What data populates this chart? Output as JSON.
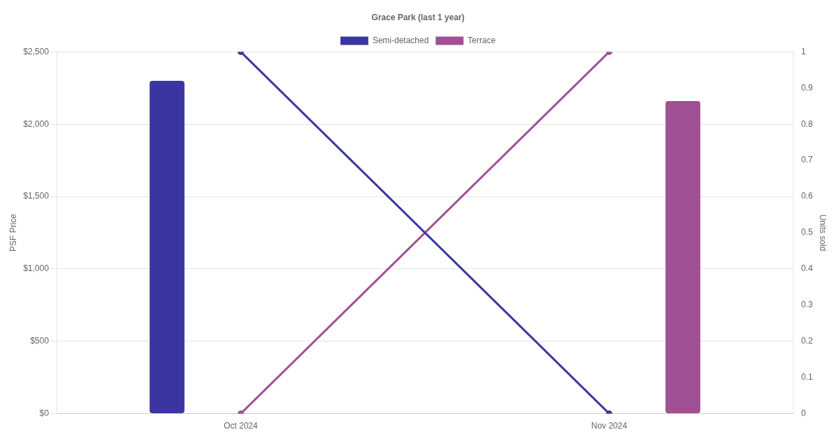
{
  "chart_data": {
    "type": "bar",
    "title": "Grace Park (last 1 year)",
    "ylabel": "PSF Price",
    "y2label": "Units sold",
    "categories": [
      "Oct 2024",
      "Nov 2024"
    ],
    "series": [
      {
        "name": "Semi-detached",
        "color": "#3a35a0",
        "values": [
          2300,
          null
        ]
      },
      {
        "name": "Terrace",
        "color": "#a05094",
        "values": [
          null,
          2160
        ]
      },
      {
        "type": "line",
        "axis": "y2",
        "color": "#3a35a0",
        "values": [
          1,
          0
        ]
      },
      {
        "type": "line",
        "axis": "y2",
        "color": "#a05094",
        "values": [
          0,
          1
        ]
      }
    ],
    "ylim": [
      0,
      2500
    ],
    "yticks": [
      {
        "value": 0,
        "label": "$0"
      },
      {
        "value": 500,
        "label": "$500"
      },
      {
        "value": 1000,
        "label": "$1,000"
      },
      {
        "value": 1500,
        "label": "$1,500"
      },
      {
        "value": 2000,
        "label": "$2,000"
      },
      {
        "value": 2500,
        "label": "$2,500"
      }
    ],
    "y2lim": [
      0,
      1
    ],
    "y2ticks": [
      0,
      0.1,
      0.2,
      0.3,
      0.4,
      0.5,
      0.6,
      0.7,
      0.8,
      0.9,
      1
    ],
    "grid": "y",
    "legend": "top",
    "marker": "circle"
  }
}
